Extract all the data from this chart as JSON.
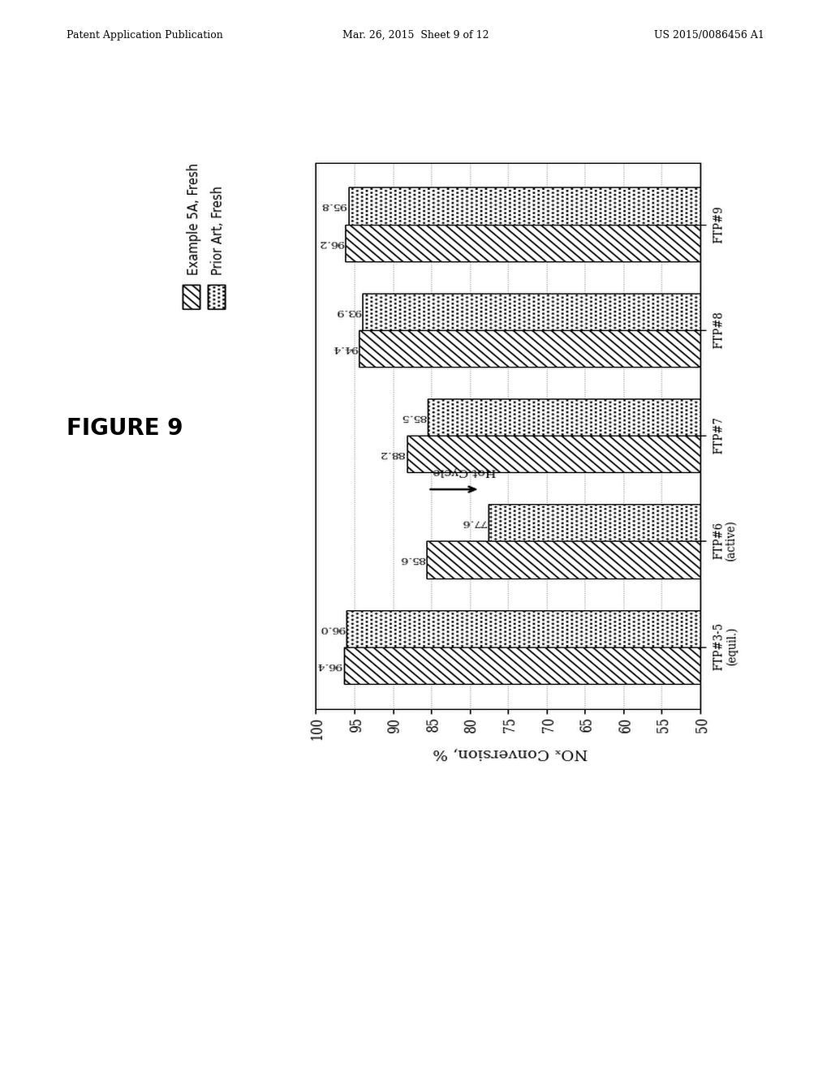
{
  "categories": [
    "FTP#3-5\n(equil.)",
    "FTP#6\n(active)",
    "FTP#7",
    "FTP#8",
    "FTP#9"
  ],
  "example5a_values": [
    96.4,
    85.6,
    88.2,
    94.4,
    96.2
  ],
  "priorart_values": [
    96.0,
    77.6,
    85.5,
    93.9,
    95.8
  ],
  "ylim_min": 50,
  "ylim_max": 100,
  "yticks": [
    50,
    55,
    60,
    65,
    70,
    75,
    80,
    85,
    90,
    95,
    100
  ],
  "ylabel_text": "NOₓ Conversion, %",
  "legend_labels": [
    "Example 5A, Fresh",
    "Prior Art, Fresh"
  ],
  "figure_title": "FIGURE 9",
  "header_left": "Patent Application Publication",
  "header_center": "Mar. 26, 2015  Sheet 9 of 12",
  "header_right": "US 2015/0086456 A1",
  "hot_cycle_annotation": "Hot Cycle",
  "background_color": "#ffffff",
  "bar_width": 0.35,
  "annotation_fontsize": 7.5,
  "axis_fontsize": 9,
  "legend_fontsize": 9,
  "title_fontsize": 20,
  "hatch_ex5a": "////",
  "hatch_prior": "...."
}
